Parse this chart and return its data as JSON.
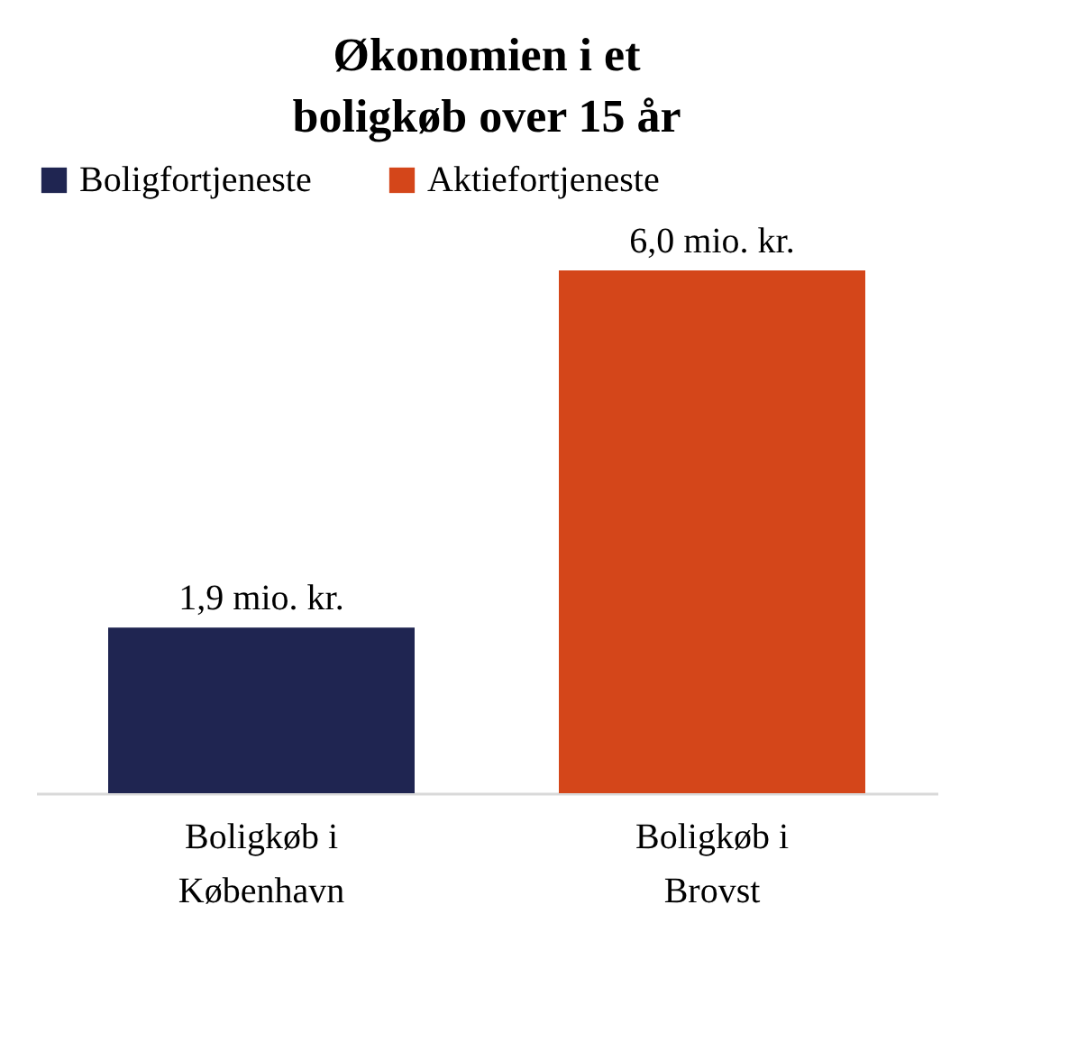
{
  "chart_data": {
    "type": "bar",
    "title": "Økonomien i et boligkøb over 15 år",
    "categories": [
      "Boligkøb i København",
      "Boligkøb i Brovst"
    ],
    "series": [
      {
        "name": "Boligfortjeneste",
        "color": "#1f2551",
        "values": [
          1.9,
          null
        ],
        "value_labels": [
          "1,9 mio. kr.",
          null
        ]
      },
      {
        "name": "Aktiefortjeneste",
        "color": "#d4461a",
        "values": [
          null,
          6.0
        ],
        "value_labels": [
          null,
          "6,0 mio. kr."
        ]
      }
    ],
    "legend": "top",
    "grid": false
  }
}
